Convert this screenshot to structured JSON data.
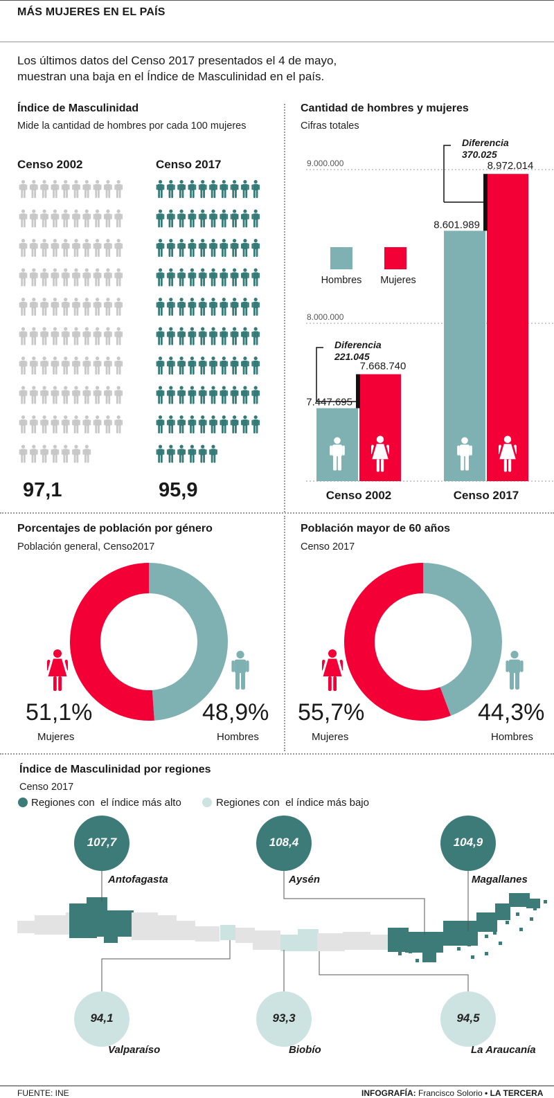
{
  "header": {
    "title": "MÁS MUJERES EN EL PAÍS",
    "intro_line1": "Los últimos datos del Censo 2017 presentados el 4 de mayo,",
    "intro_line2": "muestran una baja en el Índice de Masculinidad en el país."
  },
  "colors": {
    "hombres": "#7fb1b2",
    "mujeres": "#f20036",
    "icons_2002": "#c8c8c8",
    "icons_2017": "#357a76",
    "region_high": "#3c7b78",
    "region_low": "#cde3e2"
  },
  "chart_data": [
    {
      "type": "pictogram",
      "title": "Índice de Masculinidad",
      "subtitle": "Mide la cantidad de hombres por cada 100 mujeres",
      "categories": [
        "Censo 2002",
        "Censo 2017"
      ],
      "values": [
        97.1,
        95.9
      ],
      "value_labels": [
        "97,1",
        "95,9"
      ]
    },
    {
      "type": "bar",
      "title": "Cantidad de hombres y mujeres",
      "subtitle": "Cifras totales",
      "categories": [
        "Censo 2002",
        "Censo 2017"
      ],
      "series": [
        {
          "name": "Hombres",
          "values": [
            7447695,
            8601989
          ],
          "labels": [
            "7.447.695",
            "8.601.989"
          ]
        },
        {
          "name": "Mujeres",
          "values": [
            7668740,
            8972014
          ],
          "labels": [
            "7.668.740",
            "8.972.014"
          ]
        }
      ],
      "gridlines": [
        8000000,
        9000000
      ],
      "gridline_labels": [
        "8.000.000",
        "9.000.000"
      ],
      "difference_title": "Diferencia",
      "differences": [
        "221.045",
        "370.025"
      ],
      "legend": [
        "Hombres",
        "Mujeres"
      ],
      "legend_position": "middle-left"
    },
    {
      "type": "pie",
      "title": "Porcentajes de población por género",
      "subtitle": "Población general, Censo2017",
      "slices": [
        {
          "name": "Mujeres",
          "value": 51.1,
          "label": "51,1%"
        },
        {
          "name": "Hombres",
          "value": 48.9,
          "label": "48,9%"
        }
      ]
    },
    {
      "type": "pie",
      "title": "Población mayor de 60 años",
      "subtitle": "Censo 2017",
      "slices": [
        {
          "name": "Mujeres",
          "value": 55.7,
          "label": "55,7%"
        },
        {
          "name": "Hombres",
          "value": 44.3,
          "label": "44,3%"
        }
      ]
    }
  ],
  "regions": {
    "title": "Índice de Masculinidad  por regiones",
    "subtitle": "Censo 2017",
    "legend_high": "Regiones con  el índice más alto",
    "legend_low": "Regiones con  el índice más bajo",
    "high": [
      {
        "name": "Antofagasta",
        "value": "107,7"
      },
      {
        "name": "Aysén",
        "value": "108,4"
      },
      {
        "name": "Magallanes",
        "value": "104,9"
      }
    ],
    "low": [
      {
        "name": "Valparaíso",
        "value": "94,1"
      },
      {
        "name": "Biobío",
        "value": "93,3"
      },
      {
        "name": "La Araucanía",
        "value": "94,5"
      }
    ]
  },
  "footer": {
    "source": "FUENTE: INE",
    "credit_label": "INFOGRAFÍA: ",
    "credit_author": "Francisco Solorio",
    "credit_sep": " • ",
    "credit_outlet": "LA TERCERA"
  }
}
